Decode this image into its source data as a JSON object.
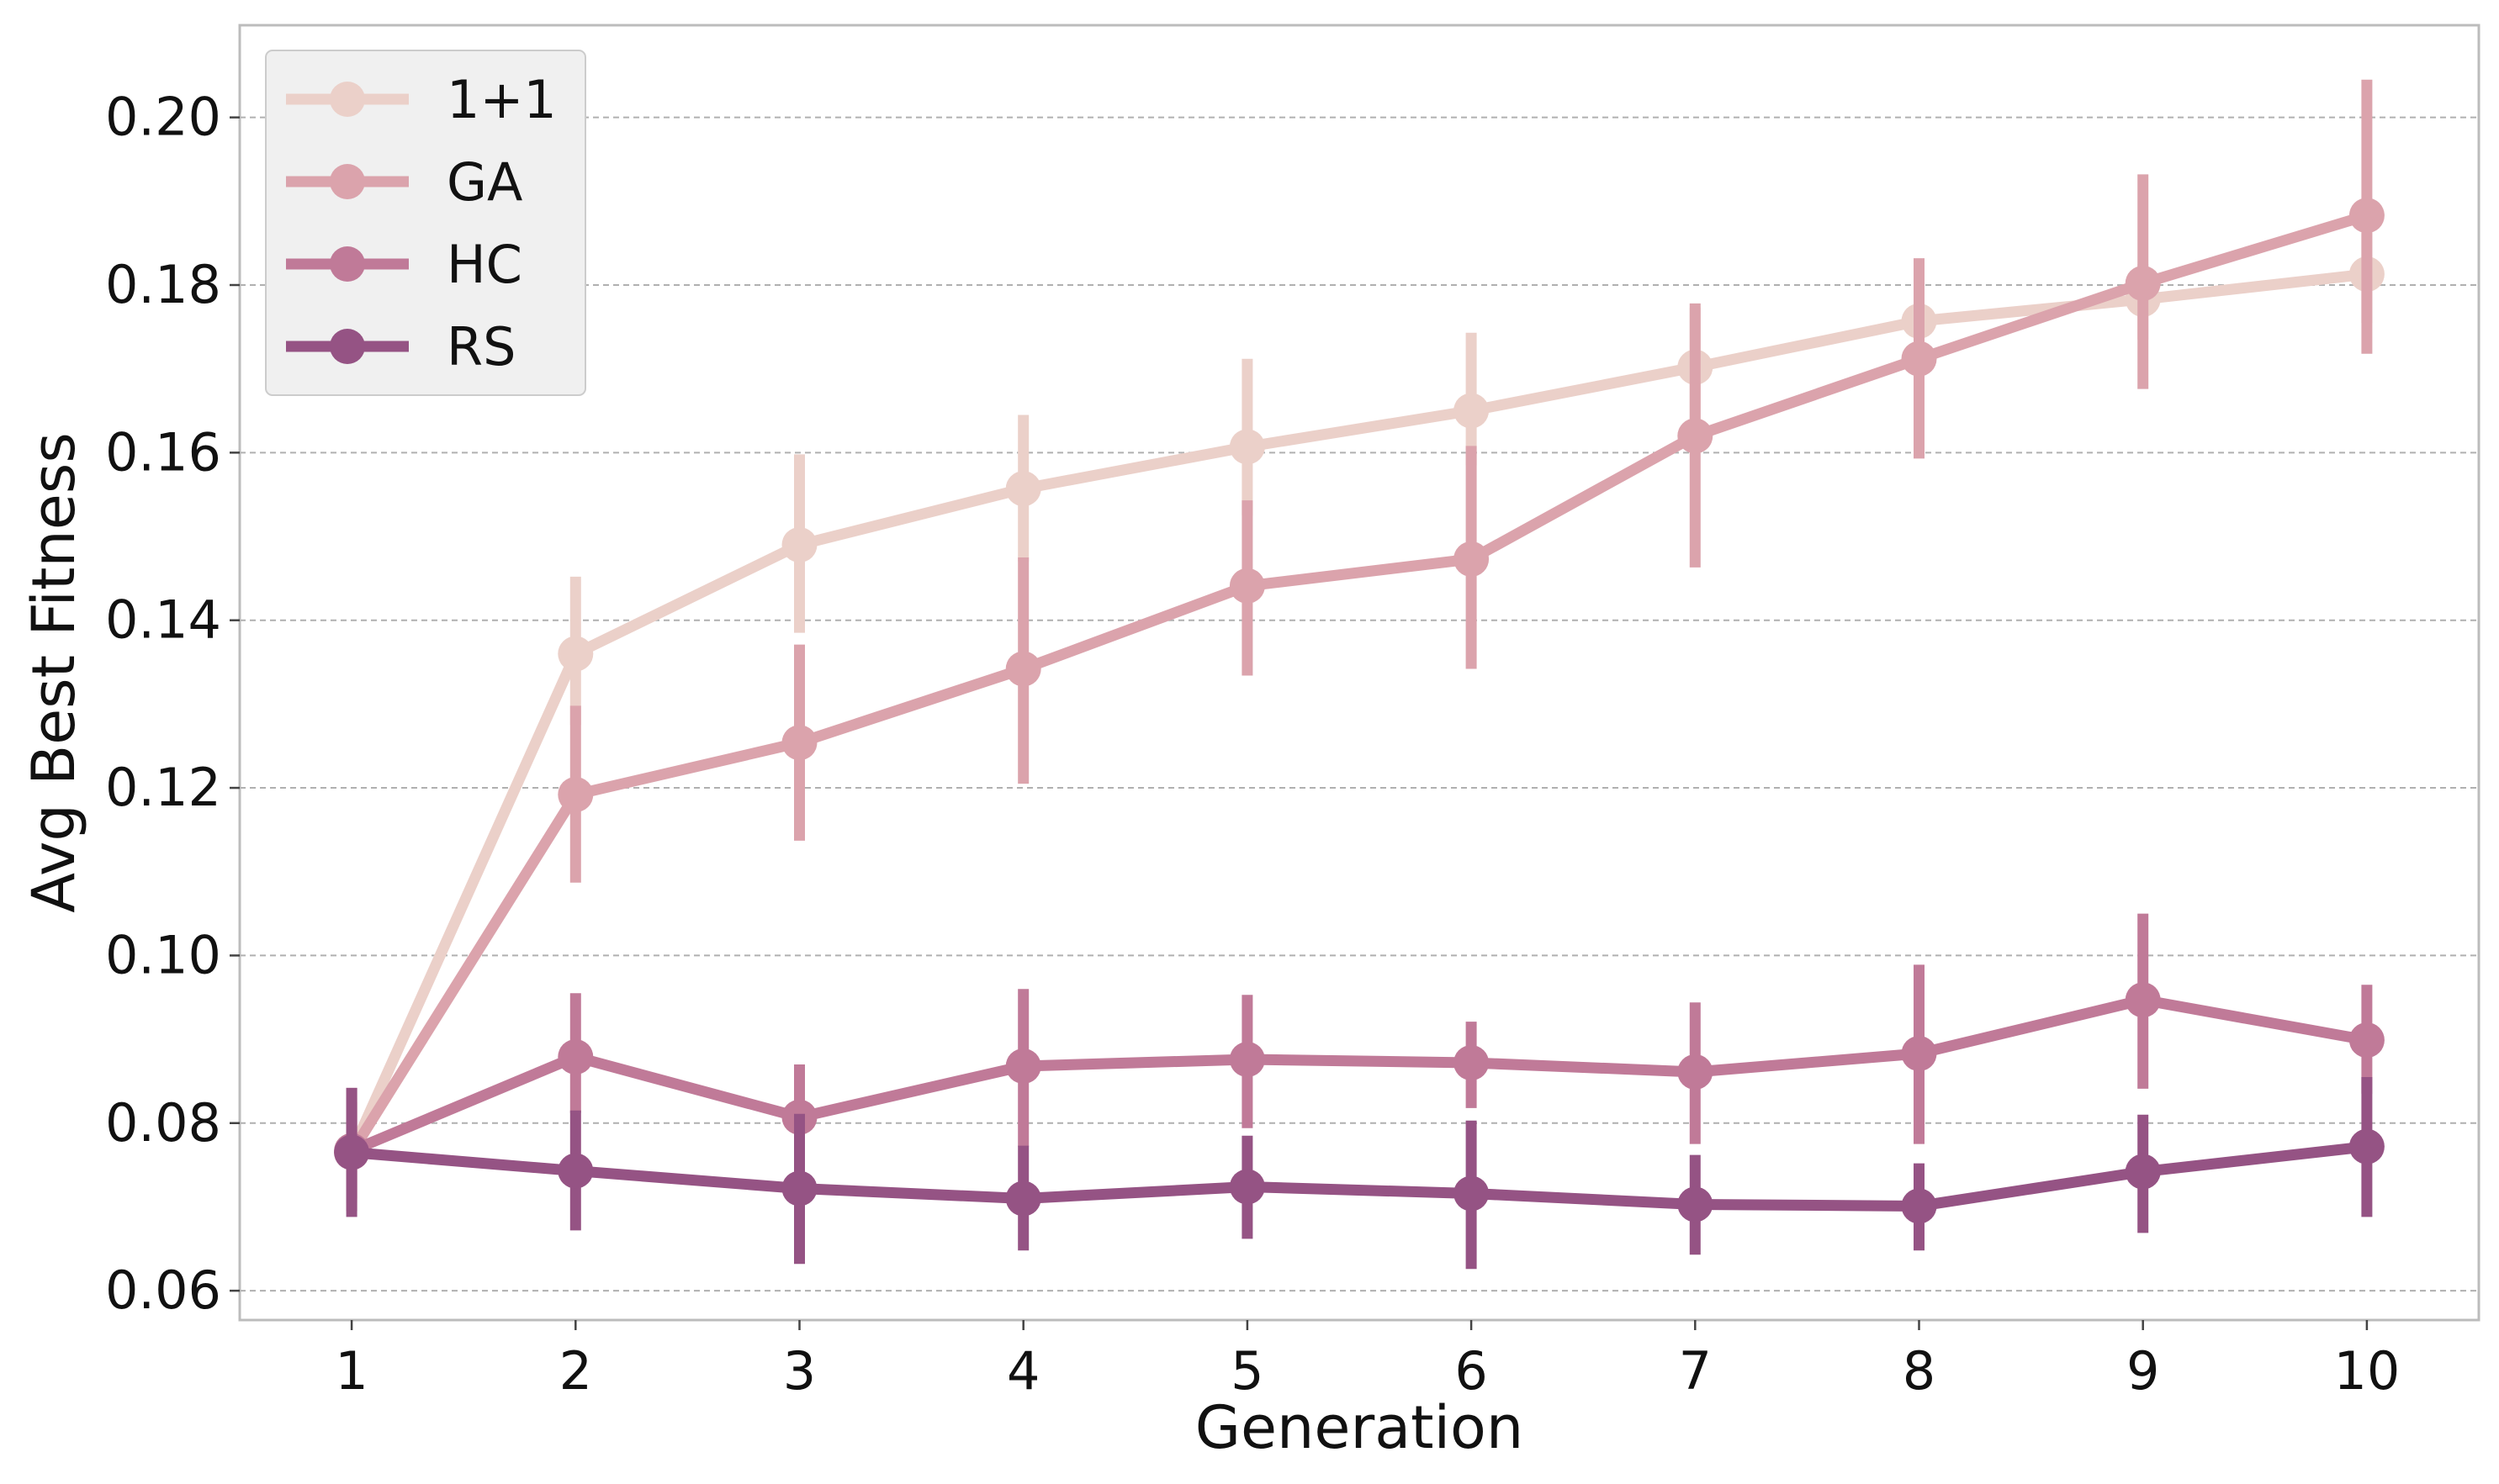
{
  "chart_data": {
    "type": "line",
    "title": "",
    "xlabel": "Generation",
    "ylabel": "Avg Best Fitness",
    "x": [
      1,
      2,
      3,
      4,
      5,
      6,
      7,
      8,
      9,
      10
    ],
    "xlim": [
      0.5,
      10.5
    ],
    "ylim": [
      0.0565,
      0.211
    ],
    "yticks": [
      0.06,
      0.08,
      0.1,
      0.12,
      0.14,
      0.16,
      0.18,
      0.2
    ],
    "ytick_labels": [
      "0.06",
      "0.08",
      "0.10",
      "0.12",
      "0.14",
      "0.16",
      "0.18",
      "0.20"
    ],
    "xtick_labels": [
      "1",
      "2",
      "3",
      "4",
      "5",
      "6",
      "7",
      "8",
      "9",
      "10"
    ],
    "grid": "horizontal dashed",
    "legend_position": "top-left",
    "series": [
      {
        "name": "1+1",
        "color": "#ebd0c9",
        "values": [
          0.0765,
          0.136,
          0.149,
          0.1557,
          0.1607,
          0.165,
          0.1702,
          0.1757,
          0.1783,
          0.1813
        ],
        "err_low": [
          0.0705,
          0.1275,
          0.1385,
          0.147,
          0.1525,
          0.1585,
          0.1635,
          0.1695,
          0.1735,
          0.1755
        ],
        "err_high": [
          0.083,
          0.1452,
          0.1598,
          0.1645,
          0.1712,
          0.1743,
          0.1773,
          0.1822,
          0.1825,
          0.1862
        ]
      },
      {
        "name": "GA",
        "color": "#dba3ac",
        "values": [
          0.0765,
          0.1192,
          0.1254,
          0.1342,
          0.1441,
          0.1473,
          0.162,
          0.1712,
          0.1802,
          0.1883
        ],
        "err_low": [
          0.071,
          0.1087,
          0.1137,
          0.1205,
          0.1334,
          0.1342,
          0.1463,
          0.1593,
          0.1676,
          0.1718
        ],
        "err_high": [
          0.0825,
          0.1298,
          0.1371,
          0.1475,
          0.1543,
          0.1608,
          0.1778,
          0.1832,
          0.1932,
          0.2045
        ]
      },
      {
        "name": "HC",
        "color": "#c07a98",
        "values": [
          0.0767,
          0.0879,
          0.0807,
          0.0868,
          0.0876,
          0.0872,
          0.0861,
          0.0883,
          0.0947,
          0.0899
        ],
        "err_low": [
          0.0695,
          0.0812,
          0.0745,
          0.0772,
          0.0794,
          0.0818,
          0.0775,
          0.0775,
          0.0841,
          0.0835
        ],
        "err_high": [
          0.0842,
          0.0955,
          0.087,
          0.096,
          0.0953,
          0.0921,
          0.0944,
          0.0989,
          0.105,
          0.0965
        ]
      },
      {
        "name": "RS",
        "color": "#955384",
        "values": [
          0.0765,
          0.0743,
          0.0722,
          0.071,
          0.0724,
          0.0716,
          0.0703,
          0.0701,
          0.0742,
          0.0772
        ],
        "err_low": [
          0.0688,
          0.0672,
          0.0632,
          0.0648,
          0.0662,
          0.0626,
          0.0643,
          0.0648,
          0.0669,
          0.0688
        ],
        "err_high": [
          0.0842,
          0.0815,
          0.0811,
          0.0773,
          0.0785,
          0.0803,
          0.0762,
          0.0752,
          0.081,
          0.0855
        ]
      }
    ]
  }
}
